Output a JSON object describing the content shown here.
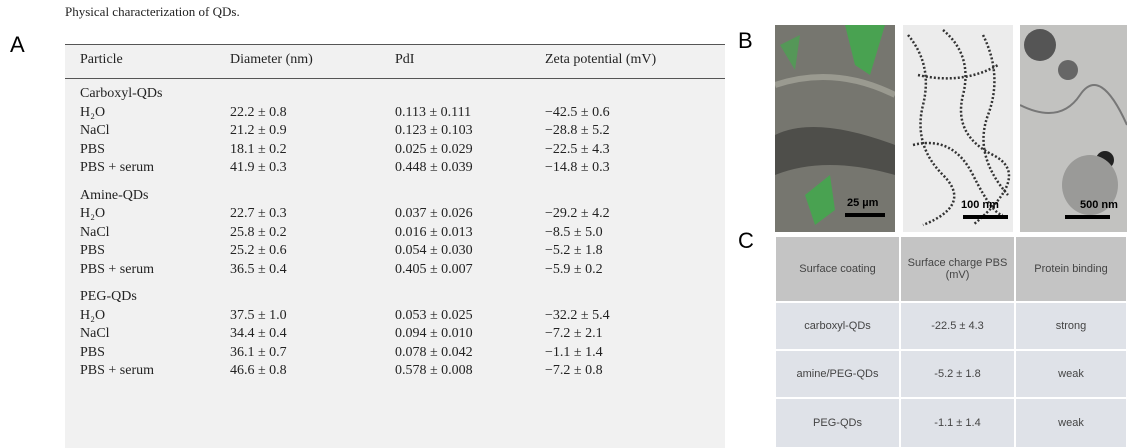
{
  "panels": {
    "a": "A",
    "b": "B",
    "c": "C"
  },
  "table_a": {
    "title": "Physical characterization of QDs.",
    "headers": [
      "Particle",
      "Diameter (nm)",
      "PdI",
      "Zeta potential (mV)"
    ],
    "groups": [
      {
        "name": "Carboxyl-QDs",
        "rows": [
          [
            "H₂O",
            "22.2 ± 0.8",
            "0.113 ± 0.111",
            "−42.5 ± 0.6"
          ],
          [
            "NaCl",
            "21.2 ± 0.9",
            "0.123 ± 0.103",
            "−28.8 ± 5.2"
          ],
          [
            "PBS",
            "18.1 ± 0.2",
            "0.025 ± 0.029",
            "−22.5 ± 4.3"
          ],
          [
            "PBS + serum",
            "41.9 ± 0.3",
            "0.448 ± 0.039",
            "−14.8 ± 0.3"
          ]
        ]
      },
      {
        "name": "Amine-QDs",
        "rows": [
          [
            "H₂O",
            "22.7 ± 0.3",
            "0.037 ± 0.026",
            "−29.2 ± 4.2"
          ],
          [
            "NaCl",
            "25.8 ± 0.2",
            "0.016 ± 0.013",
            "−8.5 ± 5.0"
          ],
          [
            "PBS",
            "25.2 ± 0.6",
            "0.054 ± 0.030",
            "−5.2 ± 1.8"
          ],
          [
            "PBS + serum",
            "36.5 ± 0.4",
            "0.405 ± 0.007",
            "−5.9 ± 0.2"
          ]
        ]
      },
      {
        "name": "PEG-QDs",
        "rows": [
          [
            "H₂O",
            "37.5 ± 1.0",
            "0.053 ± 0.025",
            "−32.2 ± 5.4"
          ],
          [
            "NaCl",
            "34.4 ± 0.4",
            "0.094 ± 0.010",
            "−7.2 ± 2.1"
          ],
          [
            "PBS",
            "36.1 ± 0.7",
            "0.078 ± 0.042",
            "−1.1 ± 1.4"
          ],
          [
            "PBS + serum",
            "46.6 ± 0.8",
            "0.578 ± 0.008",
            "−7.2 ± 0.8"
          ]
        ]
      }
    ]
  },
  "micrographs": [
    "25 µm",
    "100 nm",
    "500 nm"
  ],
  "table_c": {
    "headers": [
      "Surface coating",
      "Surface charge PBS (mV)",
      "Protein binding"
    ],
    "rows": [
      [
        "carboxyl-QDs",
        "-22.5 ± 4.3",
        "strong"
      ],
      [
        "amine/PEG-QDs",
        "-5.2 ± 1.8",
        "weak"
      ],
      [
        "PEG-QDs",
        "-1.1 ± 1.4",
        "weak"
      ]
    ]
  }
}
